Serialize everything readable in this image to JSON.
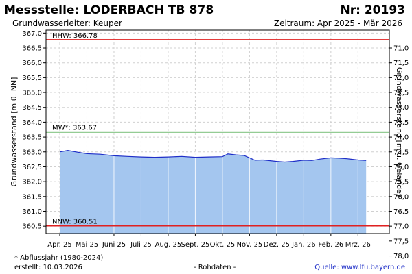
{
  "header": {
    "title": "Messstelle: LODERBACH TB 878",
    "number": "Nr: 20193",
    "subtitle": "Grundwasserleiter: Keuper",
    "period": "Zeitraum: Apr 2025 - Mär 2026"
  },
  "footer": {
    "footnote": "* Abflussjahr (1980-2024)",
    "created": "erstellt:  10.03.2026",
    "raw": "- Rohdaten -",
    "source": "Quelle: www.lfu.bayern.de"
  },
  "chart_data": {
    "type": "area",
    "ylabel": "Grundwasserstand [m ü. NN]",
    "ylabel_right": "Grundwasserstand [m u. Gelände]",
    "ylim": [
      360.25,
      367.1
    ],
    "yticks": [
      "367,0",
      "366,5",
      "366,0",
      "365,5",
      "365,0",
      "364,5",
      "364,0",
      "363,5",
      "363,0",
      "362,5",
      "362,0",
      "361,5",
      "361,0",
      "360,5"
    ],
    "yticks_right": [
      "71,0",
      "71,5",
      "72,0",
      "72,5",
      "73,0",
      "73,5",
      "74,0",
      "74,5",
      "75,0",
      "75,5",
      "76,0",
      "76,5",
      "77,0",
      "77,5",
      "78,0"
    ],
    "right_offset": 437.5,
    "categories": [
      "Apr. 25",
      "Mai 25",
      "Juni 25",
      "Juli 25",
      "Aug. 25",
      "Sept. 25",
      "Okt. 25",
      "Nov. 25",
      "Dez. 25",
      "Jan. 26",
      "Feb. 26",
      "Mrz. 26"
    ],
    "grid": true,
    "fill_color": "#a4c6ef",
    "line_color": "#1f2fc8",
    "reference_lines": [
      {
        "label": "HHW: 366.78",
        "value": 366.78,
        "color": "#e02020"
      },
      {
        "label": "MW*: 363.67",
        "value": 363.67,
        "color": "#2a9a2a"
      },
      {
        "label": "NNW: 360.51",
        "value": 360.51,
        "color": "#e02020"
      }
    ],
    "series": [
      {
        "x": [
          0,
          0.3,
          0.6,
          1.0,
          1.5,
          2.0,
          2.5,
          3.0,
          3.5,
          4.0,
          4.5,
          5.0,
          5.5,
          6.0,
          6.2,
          6.5,
          6.8,
          7.0,
          7.2,
          7.5,
          8.0,
          8.3,
          8.6,
          9.0,
          9.3,
          9.6,
          10.0,
          10.3,
          10.6,
          11.0,
          11.3
        ],
        "values": [
          363.0,
          363.05,
          363.0,
          362.94,
          362.92,
          362.87,
          362.85,
          362.83,
          362.82,
          362.83,
          362.85,
          362.82,
          362.83,
          362.84,
          362.93,
          362.9,
          362.88,
          362.8,
          362.72,
          362.73,
          362.68,
          362.66,
          362.68,
          362.72,
          362.71,
          362.76,
          362.8,
          362.79,
          362.77,
          362.73,
          362.71
        ]
      }
    ]
  }
}
